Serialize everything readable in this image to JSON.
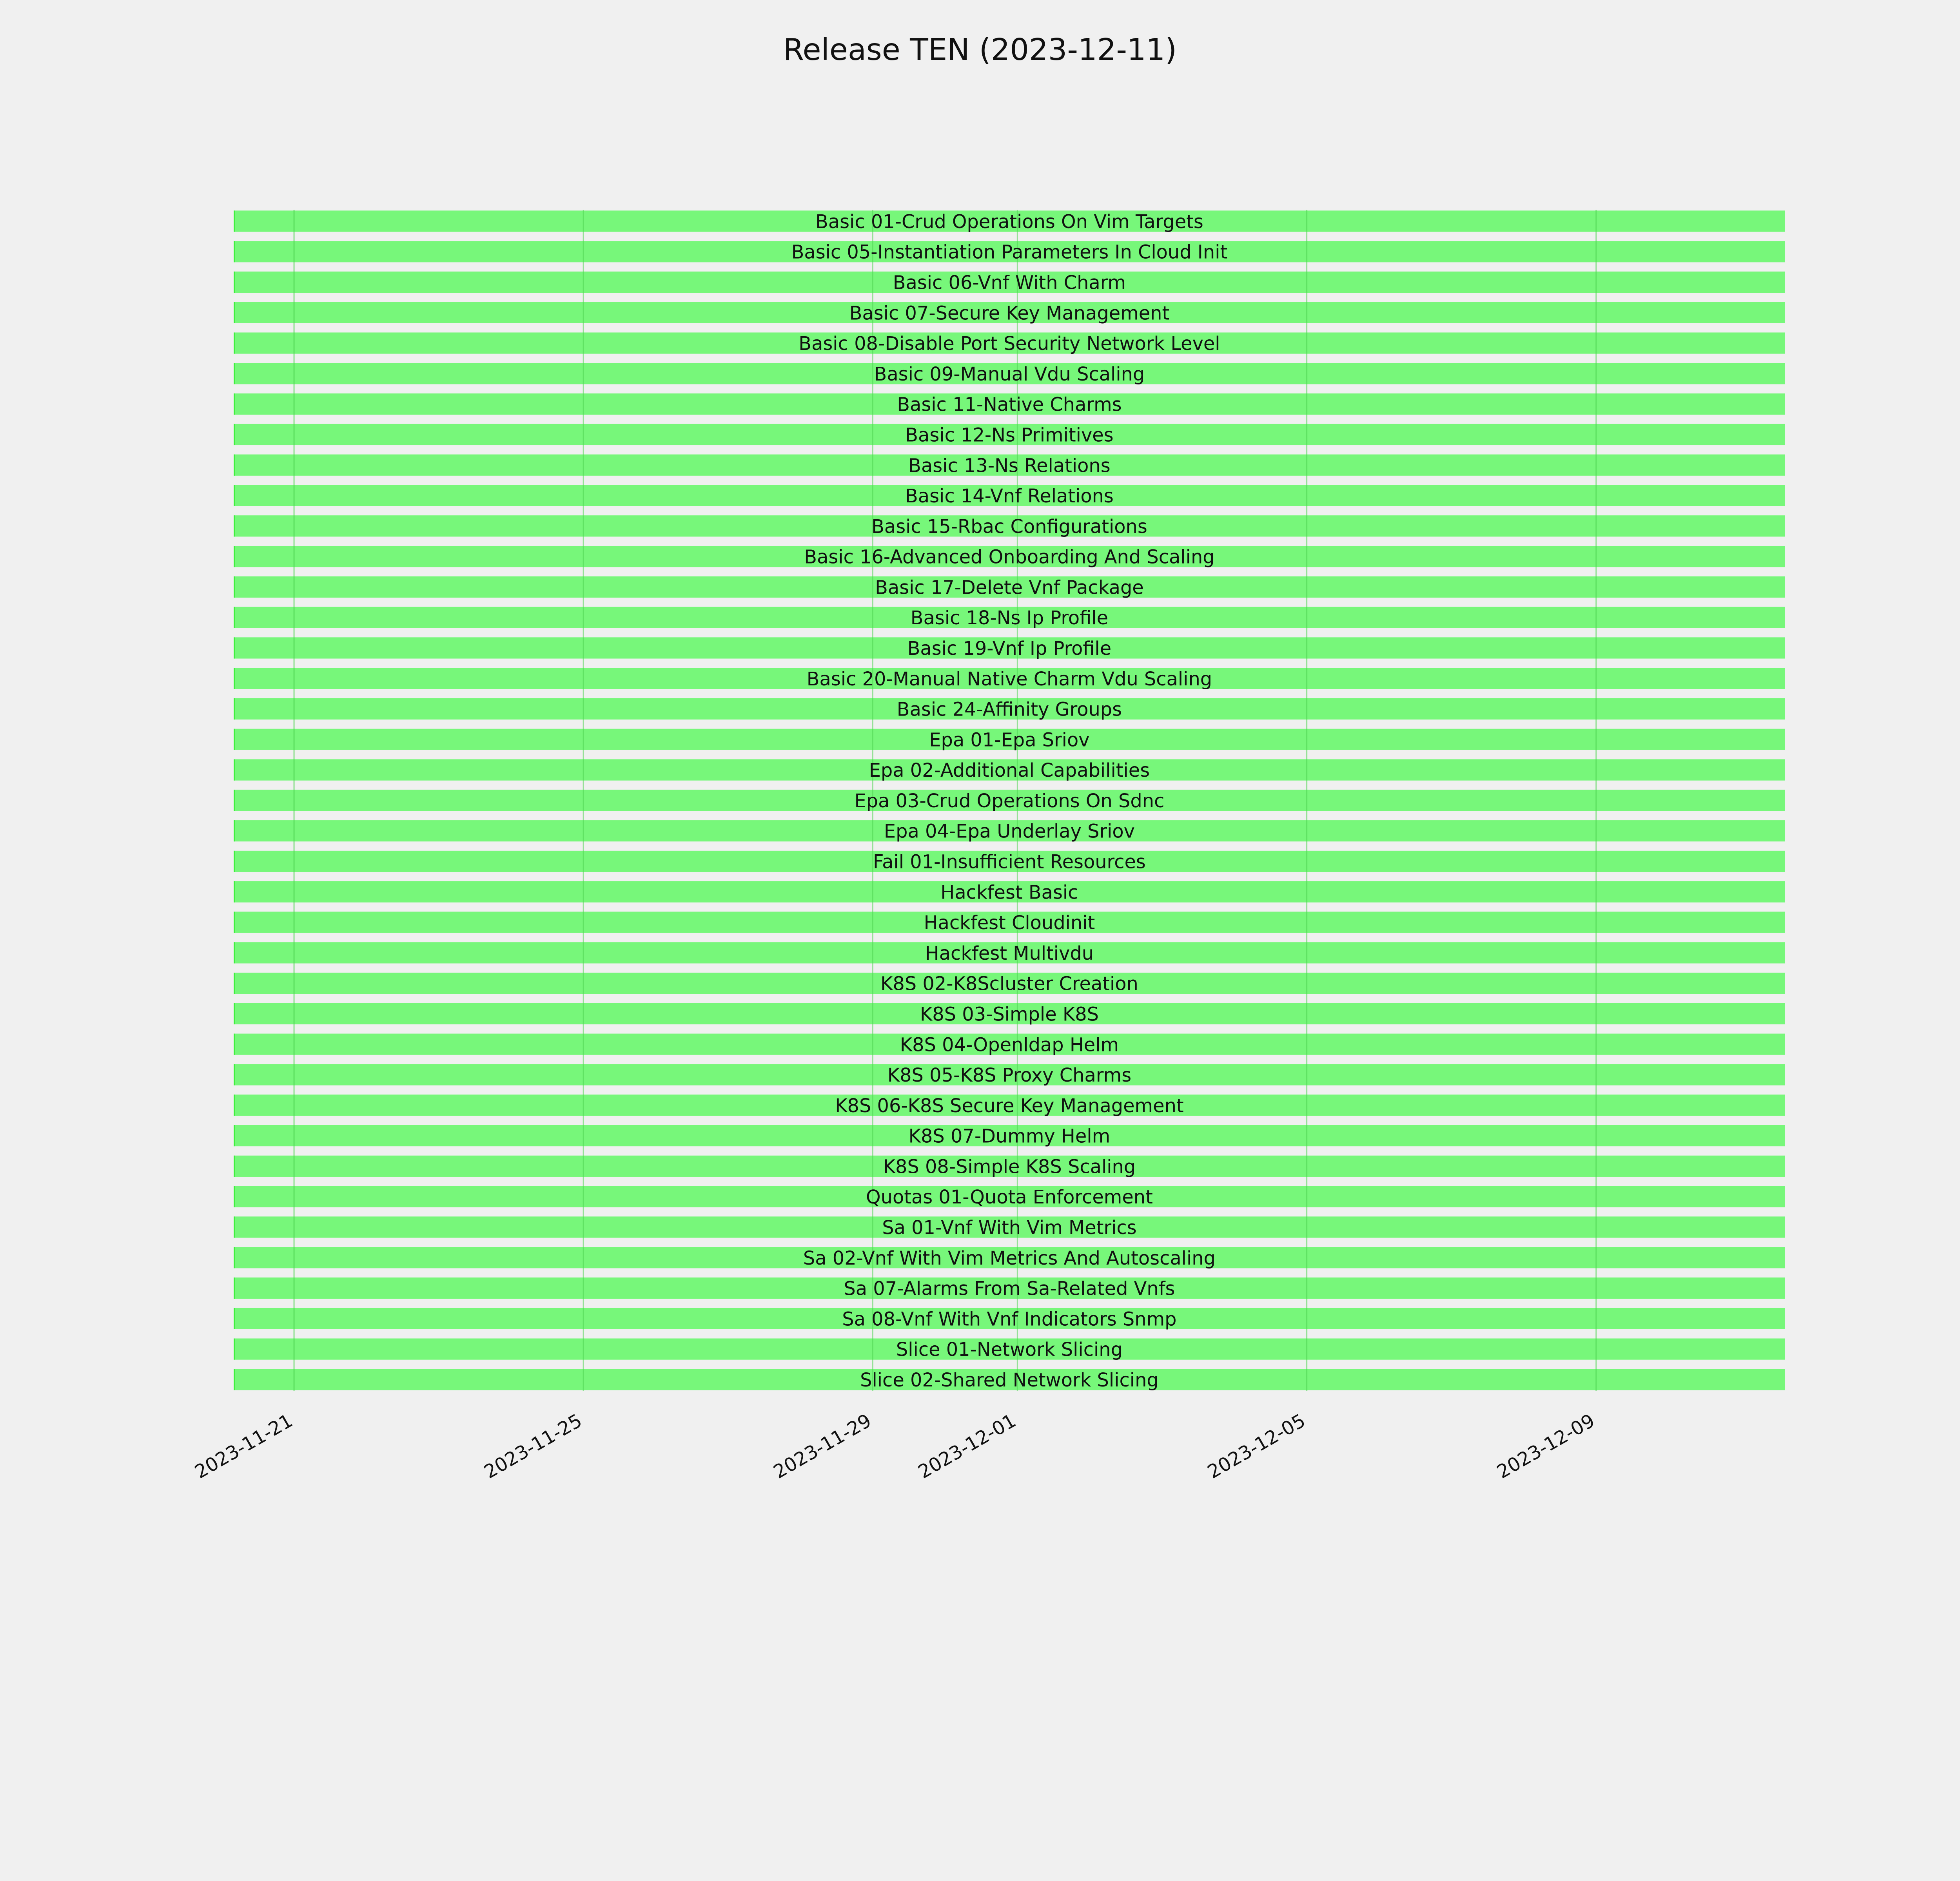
{
  "chart_data": {
    "type": "bar",
    "orientation": "horizontal-gantt",
    "title": "Release TEN (2023-12-11)",
    "xlabel": "",
    "ylabel": "",
    "x_axis": "date",
    "xlim": [
      "2023-11-20 04:00",
      "2023-12-11 14:40"
    ],
    "x_ticks": [
      "2023-11-21",
      "2023-11-25",
      "2023-11-29",
      "2023-12-01",
      "2023-12-05",
      "2023-12-09"
    ],
    "grid": "vertical",
    "bar_color": "#77f77a",
    "background": "#f0f0f0",
    "tasks": [
      {
        "label": "Basic 01-Crud Operations On Vim Targets",
        "start": "2023-11-20 04:00",
        "end": "2023-12-11 14:40"
      },
      {
        "label": "Basic 05-Instantiation Parameters In Cloud Init",
        "start": "2023-11-20 04:00",
        "end": "2023-12-11 14:40"
      },
      {
        "label": "Basic 06-Vnf With Charm",
        "start": "2023-11-20 04:00",
        "end": "2023-12-11 14:40"
      },
      {
        "label": "Basic 07-Secure Key Management",
        "start": "2023-11-20 04:00",
        "end": "2023-12-11 14:40"
      },
      {
        "label": "Basic 08-Disable Port Security Network Level",
        "start": "2023-11-20 04:00",
        "end": "2023-12-11 14:40"
      },
      {
        "label": "Basic 09-Manual Vdu Scaling",
        "start": "2023-11-20 04:00",
        "end": "2023-12-11 14:40"
      },
      {
        "label": "Basic 11-Native Charms",
        "start": "2023-11-20 04:00",
        "end": "2023-12-11 14:40"
      },
      {
        "label": "Basic 12-Ns Primitives",
        "start": "2023-11-20 04:00",
        "end": "2023-12-11 14:40"
      },
      {
        "label": "Basic 13-Ns Relations",
        "start": "2023-11-20 04:00",
        "end": "2023-12-11 14:40"
      },
      {
        "label": "Basic 14-Vnf Relations",
        "start": "2023-11-20 04:00",
        "end": "2023-12-11 14:40"
      },
      {
        "label": "Basic 15-Rbac Configurations",
        "start": "2023-11-20 04:00",
        "end": "2023-12-11 14:40"
      },
      {
        "label": "Basic 16-Advanced Onboarding And Scaling",
        "start": "2023-11-20 04:00",
        "end": "2023-12-11 14:40"
      },
      {
        "label": "Basic 17-Delete Vnf Package",
        "start": "2023-11-20 04:00",
        "end": "2023-12-11 14:40"
      },
      {
        "label": "Basic 18-Ns Ip Profile",
        "start": "2023-11-20 04:00",
        "end": "2023-12-11 14:40"
      },
      {
        "label": "Basic 19-Vnf Ip Profile",
        "start": "2023-11-20 04:00",
        "end": "2023-12-11 14:40"
      },
      {
        "label": "Basic 20-Manual Native Charm Vdu Scaling",
        "start": "2023-11-20 04:00",
        "end": "2023-12-11 14:40"
      },
      {
        "label": "Basic 24-Affinity Groups",
        "start": "2023-11-20 04:00",
        "end": "2023-12-11 14:40"
      },
      {
        "label": "Epa 01-Epa Sriov",
        "start": "2023-11-20 04:00",
        "end": "2023-12-11 14:40"
      },
      {
        "label": "Epa 02-Additional Capabilities",
        "start": "2023-11-20 04:00",
        "end": "2023-12-11 14:40"
      },
      {
        "label": "Epa 03-Crud Operations On Sdnc",
        "start": "2023-11-20 04:00",
        "end": "2023-12-11 14:40"
      },
      {
        "label": "Epa 04-Epa Underlay Sriov",
        "start": "2023-11-20 04:00",
        "end": "2023-12-11 14:40"
      },
      {
        "label": "Fail 01-Insufficient Resources",
        "start": "2023-11-20 04:00",
        "end": "2023-12-11 14:40"
      },
      {
        "label": "Hackfest Basic",
        "start": "2023-11-20 04:00",
        "end": "2023-12-11 14:40"
      },
      {
        "label": "Hackfest Cloudinit",
        "start": "2023-11-20 04:00",
        "end": "2023-12-11 14:40"
      },
      {
        "label": "Hackfest Multivdu",
        "start": "2023-11-20 04:00",
        "end": "2023-12-11 14:40"
      },
      {
        "label": "K8S 02-K8Scluster Creation",
        "start": "2023-11-20 04:00",
        "end": "2023-12-11 14:40"
      },
      {
        "label": "K8S 03-Simple K8S",
        "start": "2023-11-20 04:00",
        "end": "2023-12-11 14:40"
      },
      {
        "label": "K8S 04-Openldap Helm",
        "start": "2023-11-20 04:00",
        "end": "2023-12-11 14:40"
      },
      {
        "label": "K8S 05-K8S Proxy Charms",
        "start": "2023-11-20 04:00",
        "end": "2023-12-11 14:40"
      },
      {
        "label": "K8S 06-K8S Secure Key Management",
        "start": "2023-11-20 04:00",
        "end": "2023-12-11 14:40"
      },
      {
        "label": "K8S 07-Dummy Helm",
        "start": "2023-11-20 04:00",
        "end": "2023-12-11 14:40"
      },
      {
        "label": "K8S 08-Simple K8S Scaling",
        "start": "2023-11-20 04:00",
        "end": "2023-12-11 14:40"
      },
      {
        "label": "Quotas 01-Quota Enforcement",
        "start": "2023-11-20 04:00",
        "end": "2023-12-11 14:40"
      },
      {
        "label": "Sa 01-Vnf With Vim Metrics",
        "start": "2023-11-20 04:00",
        "end": "2023-12-11 14:40"
      },
      {
        "label": "Sa 02-Vnf With Vim Metrics And Autoscaling",
        "start": "2023-11-20 04:00",
        "end": "2023-12-11 14:40"
      },
      {
        "label": "Sa 07-Alarms From Sa-Related Vnfs",
        "start": "2023-11-20 04:00",
        "end": "2023-12-11 14:40"
      },
      {
        "label": "Sa 08-Vnf With Vnf Indicators Snmp",
        "start": "2023-11-20 04:00",
        "end": "2023-12-11 14:40"
      },
      {
        "label": "Slice 01-Network Slicing",
        "start": "2023-11-20 04:00",
        "end": "2023-12-11 14:40"
      },
      {
        "label": "Slice 02-Shared Network Slicing",
        "start": "2023-11-20 04:00",
        "end": "2023-12-11 14:40"
      }
    ]
  }
}
